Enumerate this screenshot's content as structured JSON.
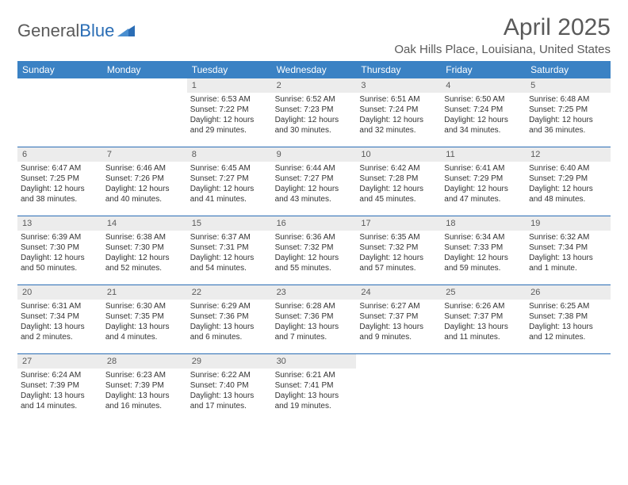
{
  "logo": {
    "text_a": "General",
    "text_b": "Blue"
  },
  "title": "April 2025",
  "location": "Oak Hills Place, Louisiana, United States",
  "colors": {
    "header_bg": "#3b82c4",
    "daynum_bg": "#ececec",
    "week_divider": "#2a6db5",
    "text_dark": "#333333",
    "text_muted": "#5a5a5a",
    "logo_blue": "#2a6db5",
    "page_bg": "#ffffff"
  },
  "fonts": {
    "title_size_pt": 30,
    "location_size_pt": 15,
    "weekday_size_pt": 12,
    "daynum_size_pt": 11,
    "body_size_pt": 10
  },
  "layout": {
    "columns": 7,
    "rows": 5,
    "first_weekday_index": 2
  },
  "weekdays": [
    "Sunday",
    "Monday",
    "Tuesday",
    "Wednesday",
    "Thursday",
    "Friday",
    "Saturday"
  ],
  "days": [
    {
      "n": "1",
      "sunrise": "Sunrise: 6:53 AM",
      "sunset": "Sunset: 7:22 PM",
      "daylight": "Daylight: 12 hours and 29 minutes."
    },
    {
      "n": "2",
      "sunrise": "Sunrise: 6:52 AM",
      "sunset": "Sunset: 7:23 PM",
      "daylight": "Daylight: 12 hours and 30 minutes."
    },
    {
      "n": "3",
      "sunrise": "Sunrise: 6:51 AM",
      "sunset": "Sunset: 7:24 PM",
      "daylight": "Daylight: 12 hours and 32 minutes."
    },
    {
      "n": "4",
      "sunrise": "Sunrise: 6:50 AM",
      "sunset": "Sunset: 7:24 PM",
      "daylight": "Daylight: 12 hours and 34 minutes."
    },
    {
      "n": "5",
      "sunrise": "Sunrise: 6:48 AM",
      "sunset": "Sunset: 7:25 PM",
      "daylight": "Daylight: 12 hours and 36 minutes."
    },
    {
      "n": "6",
      "sunrise": "Sunrise: 6:47 AM",
      "sunset": "Sunset: 7:25 PM",
      "daylight": "Daylight: 12 hours and 38 minutes."
    },
    {
      "n": "7",
      "sunrise": "Sunrise: 6:46 AM",
      "sunset": "Sunset: 7:26 PM",
      "daylight": "Daylight: 12 hours and 40 minutes."
    },
    {
      "n": "8",
      "sunrise": "Sunrise: 6:45 AM",
      "sunset": "Sunset: 7:27 PM",
      "daylight": "Daylight: 12 hours and 41 minutes."
    },
    {
      "n": "9",
      "sunrise": "Sunrise: 6:44 AM",
      "sunset": "Sunset: 7:27 PM",
      "daylight": "Daylight: 12 hours and 43 minutes."
    },
    {
      "n": "10",
      "sunrise": "Sunrise: 6:42 AM",
      "sunset": "Sunset: 7:28 PM",
      "daylight": "Daylight: 12 hours and 45 minutes."
    },
    {
      "n": "11",
      "sunrise": "Sunrise: 6:41 AM",
      "sunset": "Sunset: 7:29 PM",
      "daylight": "Daylight: 12 hours and 47 minutes."
    },
    {
      "n": "12",
      "sunrise": "Sunrise: 6:40 AM",
      "sunset": "Sunset: 7:29 PM",
      "daylight": "Daylight: 12 hours and 48 minutes."
    },
    {
      "n": "13",
      "sunrise": "Sunrise: 6:39 AM",
      "sunset": "Sunset: 7:30 PM",
      "daylight": "Daylight: 12 hours and 50 minutes."
    },
    {
      "n": "14",
      "sunrise": "Sunrise: 6:38 AM",
      "sunset": "Sunset: 7:30 PM",
      "daylight": "Daylight: 12 hours and 52 minutes."
    },
    {
      "n": "15",
      "sunrise": "Sunrise: 6:37 AM",
      "sunset": "Sunset: 7:31 PM",
      "daylight": "Daylight: 12 hours and 54 minutes."
    },
    {
      "n": "16",
      "sunrise": "Sunrise: 6:36 AM",
      "sunset": "Sunset: 7:32 PM",
      "daylight": "Daylight: 12 hours and 55 minutes."
    },
    {
      "n": "17",
      "sunrise": "Sunrise: 6:35 AM",
      "sunset": "Sunset: 7:32 PM",
      "daylight": "Daylight: 12 hours and 57 minutes."
    },
    {
      "n": "18",
      "sunrise": "Sunrise: 6:34 AM",
      "sunset": "Sunset: 7:33 PM",
      "daylight": "Daylight: 12 hours and 59 minutes."
    },
    {
      "n": "19",
      "sunrise": "Sunrise: 6:32 AM",
      "sunset": "Sunset: 7:34 PM",
      "daylight": "Daylight: 13 hours and 1 minute."
    },
    {
      "n": "20",
      "sunrise": "Sunrise: 6:31 AM",
      "sunset": "Sunset: 7:34 PM",
      "daylight": "Daylight: 13 hours and 2 minutes."
    },
    {
      "n": "21",
      "sunrise": "Sunrise: 6:30 AM",
      "sunset": "Sunset: 7:35 PM",
      "daylight": "Daylight: 13 hours and 4 minutes."
    },
    {
      "n": "22",
      "sunrise": "Sunrise: 6:29 AM",
      "sunset": "Sunset: 7:36 PM",
      "daylight": "Daylight: 13 hours and 6 minutes."
    },
    {
      "n": "23",
      "sunrise": "Sunrise: 6:28 AM",
      "sunset": "Sunset: 7:36 PM",
      "daylight": "Daylight: 13 hours and 7 minutes."
    },
    {
      "n": "24",
      "sunrise": "Sunrise: 6:27 AM",
      "sunset": "Sunset: 7:37 PM",
      "daylight": "Daylight: 13 hours and 9 minutes."
    },
    {
      "n": "25",
      "sunrise": "Sunrise: 6:26 AM",
      "sunset": "Sunset: 7:37 PM",
      "daylight": "Daylight: 13 hours and 11 minutes."
    },
    {
      "n": "26",
      "sunrise": "Sunrise: 6:25 AM",
      "sunset": "Sunset: 7:38 PM",
      "daylight": "Daylight: 13 hours and 12 minutes."
    },
    {
      "n": "27",
      "sunrise": "Sunrise: 6:24 AM",
      "sunset": "Sunset: 7:39 PM",
      "daylight": "Daylight: 13 hours and 14 minutes."
    },
    {
      "n": "28",
      "sunrise": "Sunrise: 6:23 AM",
      "sunset": "Sunset: 7:39 PM",
      "daylight": "Daylight: 13 hours and 16 minutes."
    },
    {
      "n": "29",
      "sunrise": "Sunrise: 6:22 AM",
      "sunset": "Sunset: 7:40 PM",
      "daylight": "Daylight: 13 hours and 17 minutes."
    },
    {
      "n": "30",
      "sunrise": "Sunrise: 6:21 AM",
      "sunset": "Sunset: 7:41 PM",
      "daylight": "Daylight: 13 hours and 19 minutes."
    }
  ]
}
